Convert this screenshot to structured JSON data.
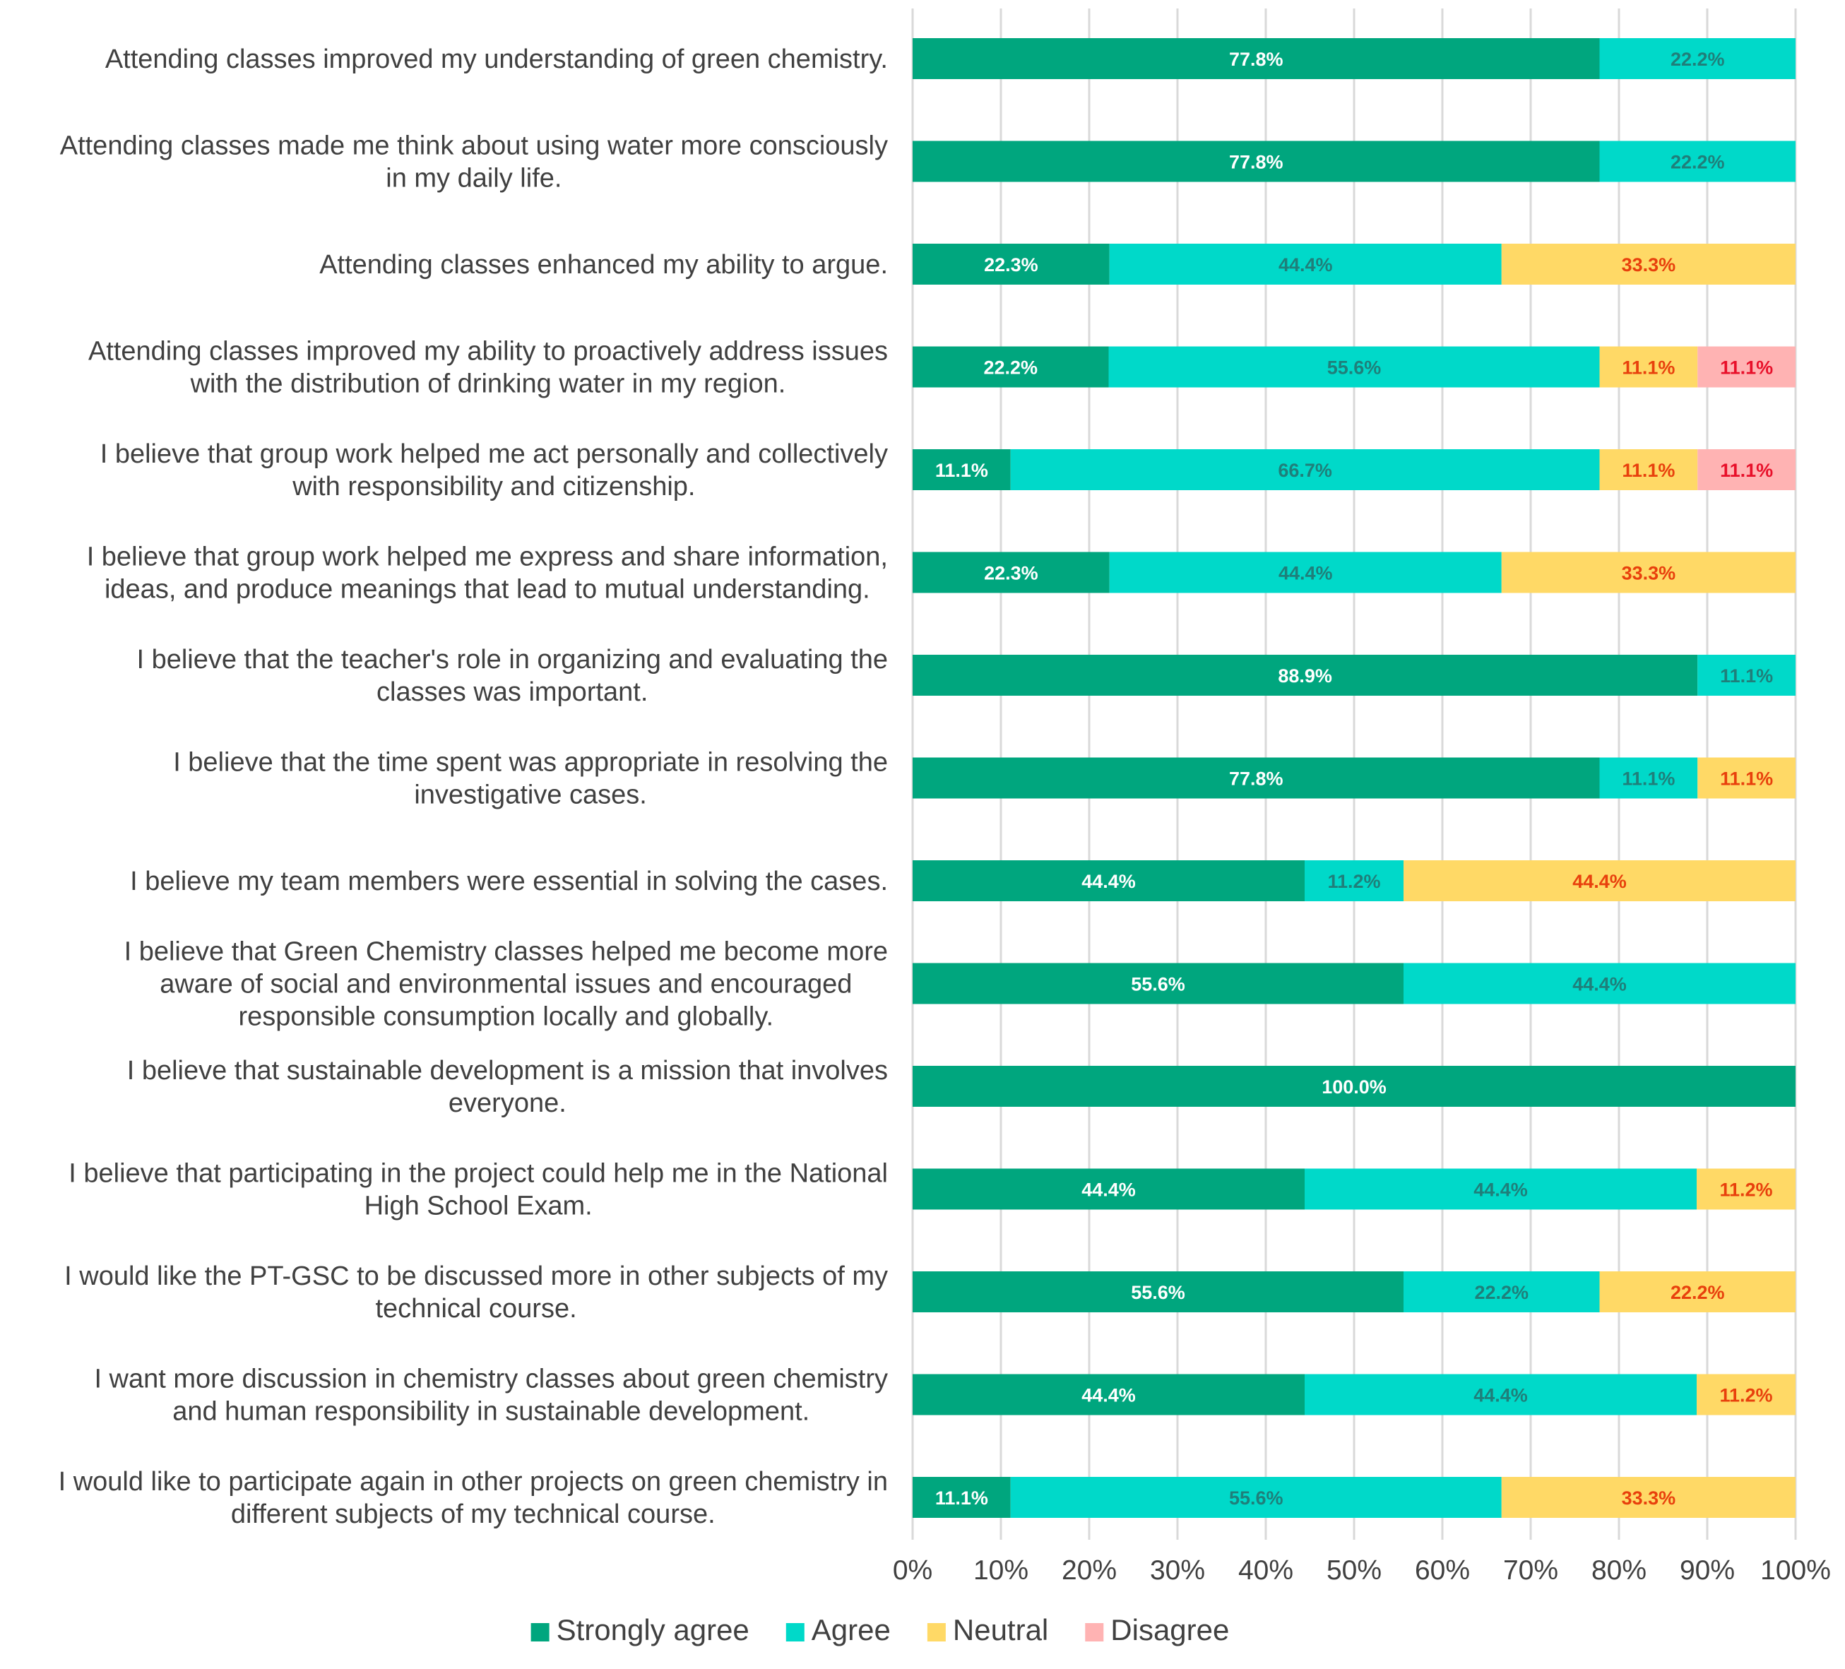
{
  "chart_data": {
    "type": "bar",
    "orientation": "horizontal",
    "stacked": true,
    "title": "",
    "xlabel": "",
    "ylabel": "",
    "xlim": [
      0,
      100
    ],
    "x_ticks": [
      "0%",
      "10%",
      "20%",
      "30%",
      "40%",
      "50%",
      "60%",
      "70%",
      "80%",
      "90%",
      "100%"
    ],
    "grid": true,
    "legend_position": "bottom",
    "categories": [
      [
        "Attending classes improved my understanding of green chemistry."
      ],
      [
        "Attending classes made me think about using water more consciously",
        "in my daily life."
      ],
      [
        "Attending classes enhanced my ability to argue."
      ],
      [
        "Attending classes improved my ability to proactively address issues",
        "with the distribution of drinking water in my region."
      ],
      [
        "I believe that group work helped me act personally and collectively",
        "with responsibility and citizenship."
      ],
      [
        "I believe that group work helped me express and share information,",
        "ideas, and produce meanings that lead to mutual understanding."
      ],
      [
        "I believe that the teacher's role in organizing and evaluating the",
        "classes was important."
      ],
      [
        "I believe that the time spent was appropriate in resolving the",
        "investigative cases."
      ],
      [
        "I believe my team members were essential in solving the cases."
      ],
      [
        "I believe that Green Chemistry classes helped me become more",
        "aware of social and environmental issues and encouraged",
        "responsible consumption locally and globally."
      ],
      [
        "I believe that sustainable development is a mission that involves",
        "everyone."
      ],
      [
        "I believe that participating in the project could help me in the National",
        "High School Exam."
      ],
      [
        "I would like the PT-GSC to be discussed more in other subjects of my",
        "technical course."
      ],
      [
        "I want more discussion in chemistry classes about green chemistry",
        "and human responsibility in sustainable development."
      ],
      [
        "I would like to participate again in other projects on green chemistry in",
        "different subjects of my technical course."
      ]
    ],
    "series": [
      {
        "name": "Strongly agree",
        "color": "#00A67E",
        "label_color": "#FFFFFF",
        "values": [
          77.8,
          77.8,
          22.3,
          22.2,
          11.1,
          22.3,
          88.9,
          77.8,
          44.4,
          55.6,
          100.0,
          44.4,
          55.6,
          44.4,
          11.1
        ],
        "labels": [
          "77.8%",
          "77.8%",
          "22.3%",
          "22.2%",
          "11.1%",
          "22.3%",
          "88.9%",
          "77.8%",
          "44.4%",
          "55.6%",
          "100.0%",
          "44.4%",
          "55.6%",
          "44.4%",
          "11.1%"
        ]
      },
      {
        "name": "Agree",
        "color": "#00D9C9",
        "label_color": "#1F7F7A",
        "values": [
          22.2,
          22.2,
          44.4,
          55.6,
          66.7,
          44.4,
          11.1,
          11.1,
          11.2,
          44.4,
          0,
          44.4,
          22.2,
          44.4,
          55.6
        ],
        "labels": [
          "22.2%",
          "22.2%",
          "44.4%",
          "55.6%",
          "66.7%",
          "44.4%",
          "11.1%",
          "11.1%",
          "11.2%",
          "44.4%",
          "",
          "44.4%",
          "22.2%",
          "44.4%",
          "55.6%"
        ]
      },
      {
        "name": "Neutral",
        "color": "#FFD966",
        "label_color": "#E8400C",
        "values": [
          0,
          0,
          33.3,
          11.1,
          11.1,
          33.3,
          0,
          11.1,
          44.4,
          0,
          0,
          11.2,
          22.2,
          11.2,
          33.3
        ],
        "labels": [
          "",
          "",
          "33.3%",
          "11.1%",
          "11.1%",
          "33.3%",
          "",
          "11.1%",
          "44.4%",
          "",
          "",
          "11.2%",
          "22.2%",
          "11.2%",
          "33.3%"
        ]
      },
      {
        "name": "Disagree",
        "color": "#FFB3B3",
        "label_color": "#E8102A",
        "values": [
          0,
          0,
          0,
          11.1,
          11.1,
          0,
          0,
          0,
          0,
          0,
          0,
          0,
          0,
          0,
          0
        ],
        "labels": [
          "",
          "",
          "",
          "11.1%",
          "11.1%",
          "",
          "",
          "",
          "",
          "",
          "",
          "",
          "",
          "",
          ""
        ]
      }
    ]
  }
}
